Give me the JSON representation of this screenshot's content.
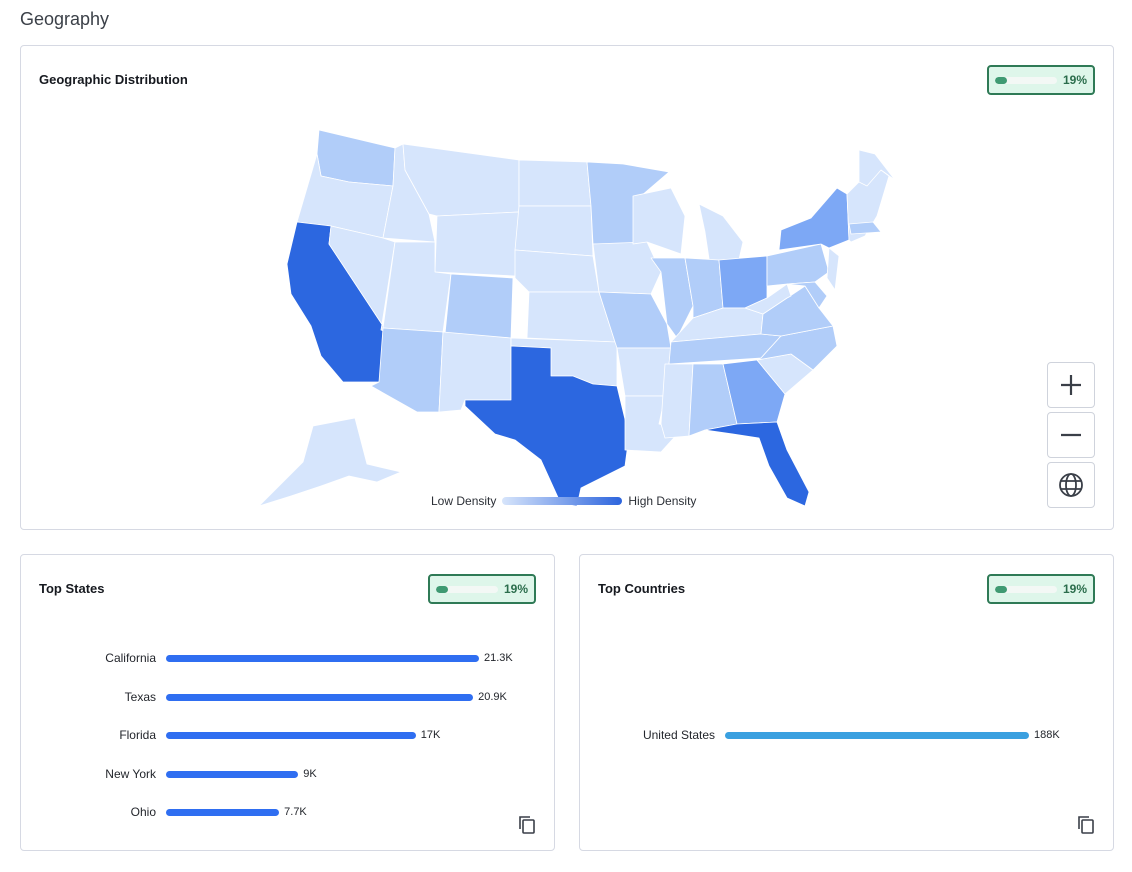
{
  "page": {
    "section_title": "Geography"
  },
  "map_card": {
    "title": "Geographic Distribution",
    "coverage": {
      "percent_label": "19%",
      "fraction": 0.19
    },
    "legend": {
      "low_label": "Low Density",
      "high_label": "High Density"
    },
    "controls": [
      "zoom-in",
      "zoom-out",
      "reset-globe"
    ],
    "state_shading": {
      "California": "high",
      "Texas": "high",
      "Florida": "high",
      "New York": "medium",
      "Ohio": "medium",
      "Georgia": "medium",
      "Pennsylvania": "light",
      "North Carolina": "light",
      "Virginia": "light",
      "Illinois": "light",
      "Michigan": "light",
      "Indiana": "light",
      "Colorado": "light",
      "Arizona": "light",
      "Missouri": "light",
      "Alabama": "light",
      "Tennessee": "light",
      "Kentucky": "light",
      "Wisconsin": "light",
      "Minnesota": "light",
      "Washington": "light",
      "Nevada": "light",
      "Louisiana": "light",
      "South Carolina": "light",
      "Maryland": "light",
      "New Jersey": "light",
      "Massachusetts": "light"
    }
  },
  "top_states": {
    "title": "Top States",
    "coverage": {
      "percent_label": "19%",
      "fraction": 0.19
    },
    "rows": [
      {
        "label": "California",
        "value": 21300,
        "value_label": "21.3K"
      },
      {
        "label": "Texas",
        "value": 20900,
        "value_label": "20.9K"
      },
      {
        "label": "Florida",
        "value": 17000,
        "value_label": "17K"
      },
      {
        "label": "New York",
        "value": 9000,
        "value_label": "9K"
      },
      {
        "label": "Ohio",
        "value": 7700,
        "value_label": "7.7K"
      }
    ],
    "bar_color": "#2f6ef1"
  },
  "top_countries": {
    "title": "Top Countries",
    "coverage": {
      "percent_label": "19%",
      "fraction": 0.19
    },
    "rows": [
      {
        "label": "United States",
        "value": 188000,
        "value_label": "188K"
      }
    ],
    "bar_color": "#3aa0e0"
  },
  "colors": {
    "density_high": "#2c67e0",
    "density_medium": "#7da8f5",
    "density_light": "#b1cdf9",
    "density_lowest": "#d6e5fc",
    "badge_border": "#2f7a56",
    "badge_bg": "#def6ea"
  },
  "icons": {
    "zoom_in": "plus-icon",
    "zoom_out": "minus-icon",
    "reset": "globe-icon",
    "copy": "copy-icon"
  }
}
